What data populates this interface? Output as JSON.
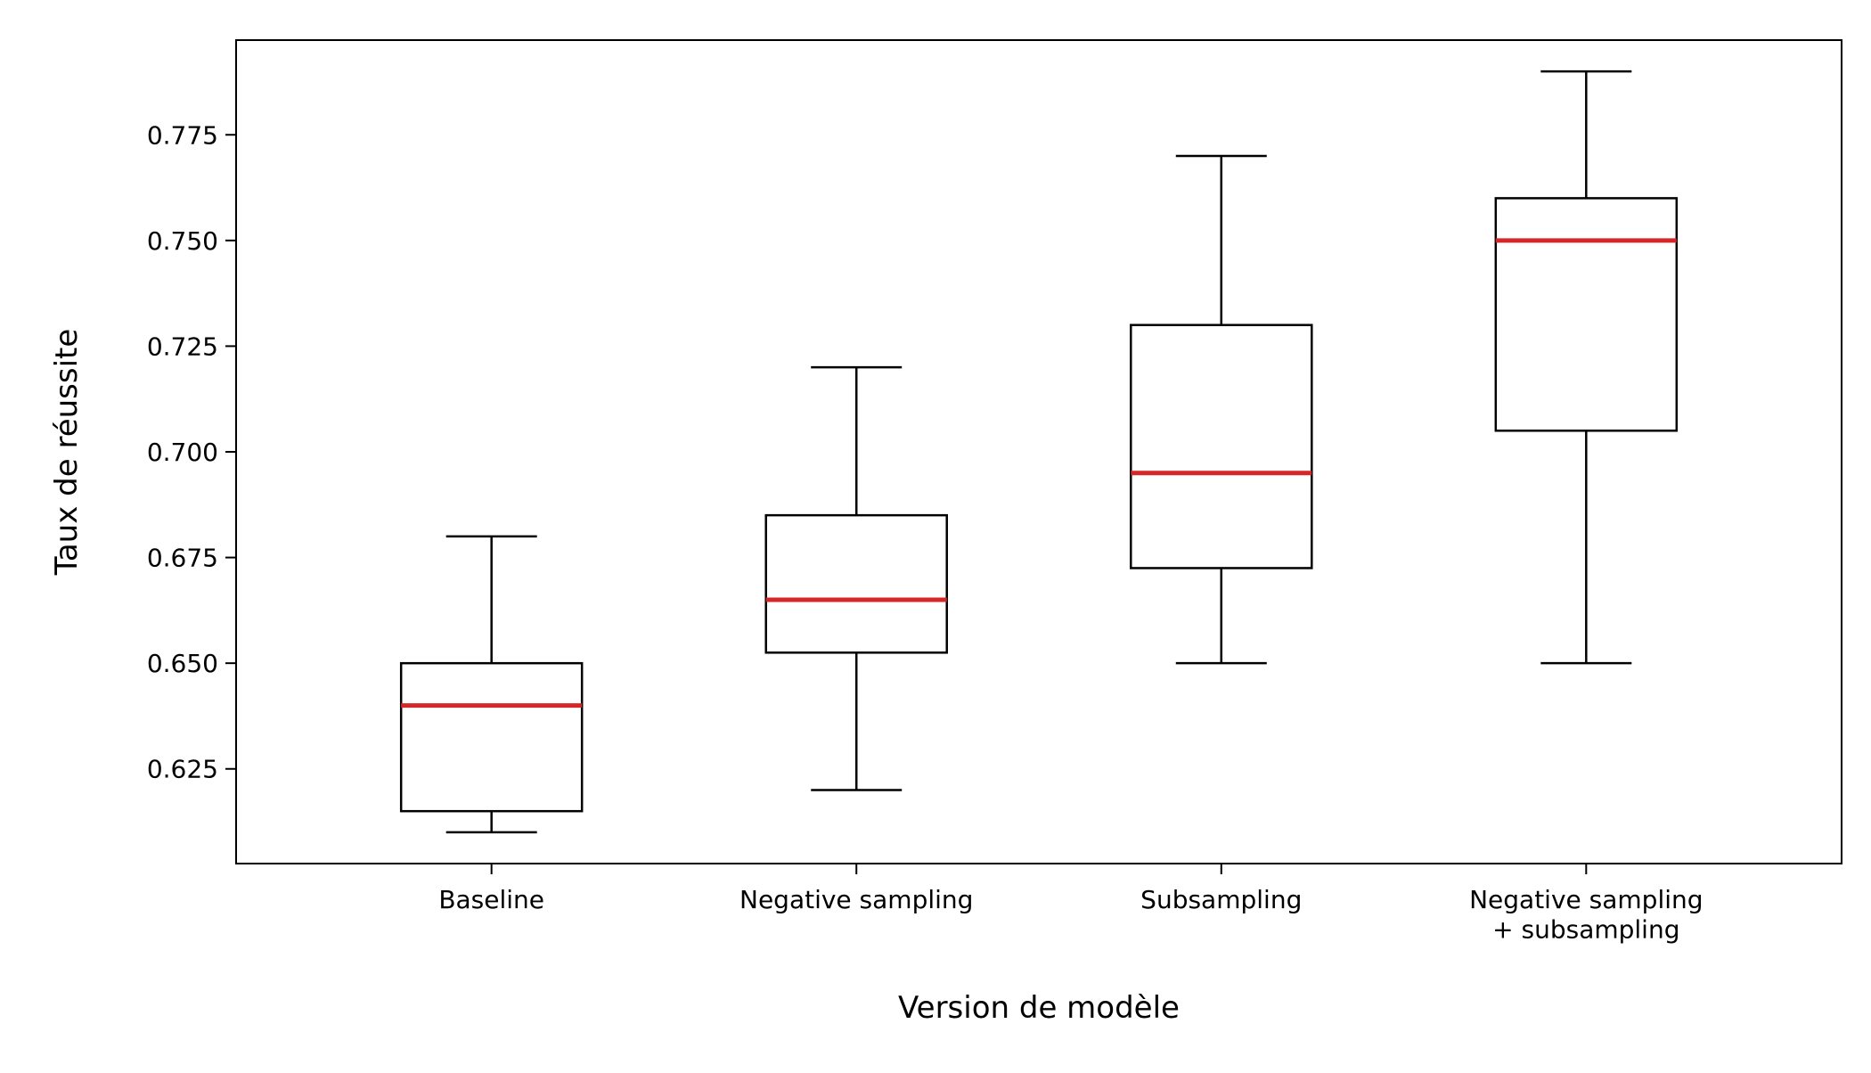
{
  "chart_data": {
    "type": "box",
    "title": "",
    "xlabel": "Version de modèle",
    "ylabel": "Taux de réussite",
    "ylim": [
      0.6026,
      0.7974
    ],
    "yticks": [
      0.625,
      0.65,
      0.675,
      0.7,
      0.725,
      0.75,
      0.775
    ],
    "ytick_labels": [
      "0.625",
      "0.650",
      "0.675",
      "0.700",
      "0.725",
      "0.750",
      "0.775"
    ],
    "categories": [
      [
        "Baseline"
      ],
      [
        "Negative sampling"
      ],
      [
        "Subsampling"
      ],
      [
        "Negative sampling",
        "+ subsampling"
      ]
    ],
    "boxes": [
      {
        "whisker_low": 0.61,
        "q1": 0.615,
        "median": 0.64,
        "q3": 0.65,
        "whisker_high": 0.68
      },
      {
        "whisker_low": 0.62,
        "q1": 0.6525,
        "median": 0.665,
        "q3": 0.685,
        "whisker_high": 0.72
      },
      {
        "whisker_low": 0.65,
        "q1": 0.6725,
        "median": 0.695,
        "q3": 0.73,
        "whisker_high": 0.77
      },
      {
        "whisker_low": 0.65,
        "q1": 0.705,
        "median": 0.75,
        "q3": 0.76,
        "whisker_high": 0.79
      }
    ],
    "grid": false,
    "legend": "none",
    "colors": {
      "box": "#000000",
      "median": "#d62728",
      "axes": "#000000"
    }
  }
}
